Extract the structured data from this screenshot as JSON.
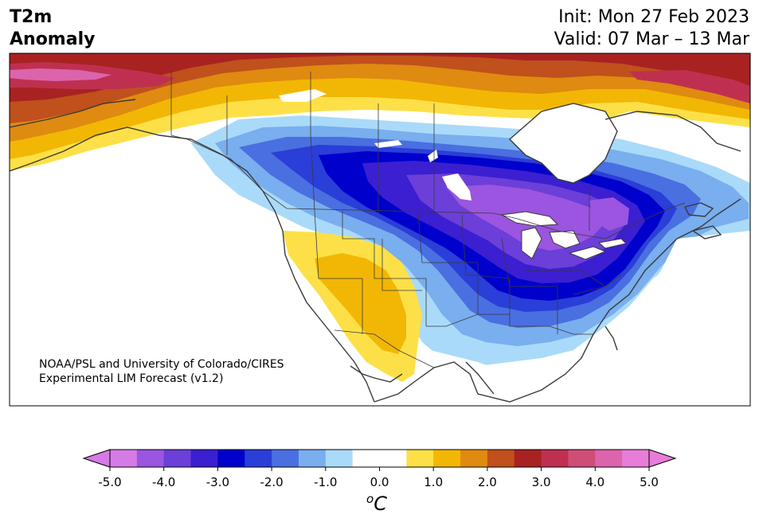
{
  "title": {
    "left": [
      "T2m",
      "Anomaly"
    ],
    "right": [
      "Init: Mon 27 Feb 2023",
      "Valid: 07 Mar – 13 Mar"
    ]
  },
  "credit": {
    "line1": "NOAA/PSL and University of Colorado/CIRES",
    "line2": "Experimental LIM Forecast (v1.2)"
  },
  "colorbar": {
    "unit_super": "o",
    "unit_main": "C",
    "ticks": [
      "-5.0",
      "-4.0",
      "-3.0",
      "-2.0",
      "-1.0",
      "0.0",
      "1.0",
      "2.0",
      "3.0",
      "4.0",
      "5.0"
    ],
    "levels": [
      -5.0,
      -4.5,
      -4.0,
      -3.5,
      -3.0,
      -2.5,
      -2.0,
      -1.5,
      -1.0,
      -0.5,
      0.5,
      1.0,
      1.5,
      2.0,
      2.5,
      3.0,
      3.5,
      4.0,
      4.5,
      5.0
    ],
    "colors": [
      "#d57be6",
      "#9b55e0",
      "#6b3fd8",
      "#3b1fd0",
      "#0000cc",
      "#2a3ed8",
      "#4a6fe0",
      "#79aeef",
      "#aadaf9",
      "#ffffff",
      "#fde047",
      "#f2b705",
      "#df8a10",
      "#c0501c",
      "#a82222",
      "#bf3050",
      "#cf4e78",
      "#dc64ac",
      "#e77dd9"
    ],
    "under_color": "#d57be6",
    "over_color": "#e77dd9"
  },
  "map": {
    "region": "North America",
    "land_color": "#ffffff",
    "coast_color": "#3a3a3a"
  }
}
